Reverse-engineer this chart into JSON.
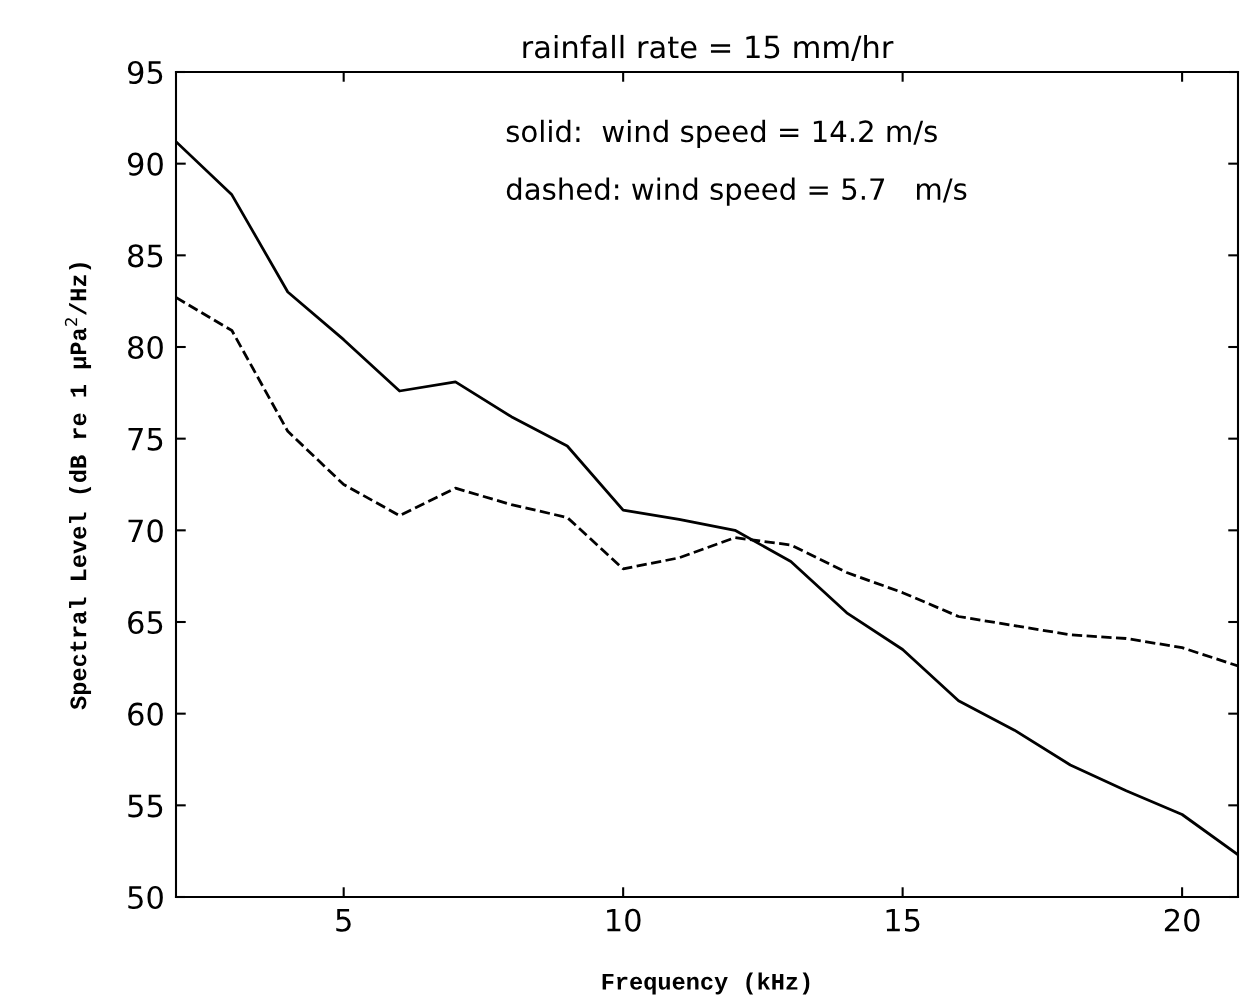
{
  "chart_data": {
    "type": "line",
    "title": "rainfall rate = 15 mm/hr",
    "xlabel": "Frequency (kHz)",
    "ylabel": "Spectral Level (dB re 1 μPa$^{2}$/Hz)",
    "annotations": [
      "solid:  wind speed = 14.2 m/s",
      "dashed: wind speed = 5.7   m/s"
    ],
    "x": [
      2,
      3,
      4,
      5,
      6,
      7,
      8,
      9,
      10,
      11,
      12,
      13,
      14,
      15,
      16,
      17,
      18,
      19,
      20,
      21
    ],
    "series": [
      {
        "color": "#000000",
        "line_style": "solid",
        "values": [
          91.2,
          88.3,
          83.0,
          80.4,
          77.6,
          78.1,
          76.2,
          74.6,
          71.1,
          70.6,
          70.0,
          68.3,
          65.5,
          63.5,
          60.7,
          59.1,
          57.2,
          55.8,
          54.5,
          52.3
        ]
      },
      {
        "color": "#000000",
        "line_style": "dashed",
        "values": [
          82.7,
          80.9,
          75.4,
          72.5,
          70.8,
          72.3,
          71.4,
          70.7,
          67.9,
          68.5,
          69.6,
          69.2,
          67.7,
          66.6,
          65.3,
          64.8,
          64.3,
          64.1,
          63.6,
          62.6
        ]
      }
    ],
    "xlim": [
      2,
      21
    ],
    "xticks": [
      5,
      10,
      15,
      20
    ],
    "ylim": [
      50,
      95
    ],
    "yticks": [
      50,
      55,
      60,
      65,
      70,
      75,
      80,
      85,
      90,
      95
    ],
    "grid": false,
    "legend": false,
    "marker": "none"
  }
}
